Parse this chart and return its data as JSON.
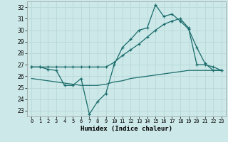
{
  "xlabel": "Humidex (Indice chaleur)",
  "background_color": "#cce8e8",
  "grid_color": "#b8d8d8",
  "line_color": "#1a6b6b",
  "x_values": [
    0,
    1,
    2,
    3,
    4,
    5,
    6,
    7,
    8,
    9,
    10,
    11,
    12,
    13,
    14,
    15,
    16,
    17,
    18,
    19,
    20,
    21,
    22,
    23
  ],
  "line1": [
    26.8,
    26.8,
    26.6,
    26.5,
    25.2,
    25.2,
    25.8,
    22.7,
    23.8,
    24.5,
    27.0,
    28.5,
    29.2,
    30.0,
    30.2,
    32.2,
    31.2,
    31.4,
    30.8,
    30.1,
    28.5,
    27.1,
    26.5,
    26.5
  ],
  "line2": [
    26.8,
    26.8,
    26.8,
    26.8,
    26.8,
    26.8,
    26.8,
    26.8,
    26.8,
    26.8,
    27.2,
    27.8,
    28.3,
    28.8,
    29.4,
    30.0,
    30.5,
    30.8,
    31.0,
    30.2,
    27.0,
    27.0,
    26.8,
    26.5
  ],
  "line3": [
    25.8,
    25.7,
    25.6,
    25.5,
    25.4,
    25.3,
    25.2,
    25.2,
    25.2,
    25.3,
    25.5,
    25.6,
    25.8,
    25.9,
    26.0,
    26.1,
    26.2,
    26.3,
    26.4,
    26.5,
    26.5,
    26.5,
    26.5,
    26.5
  ],
  "ylim": [
    22.5,
    32.5
  ],
  "yticks": [
    23,
    24,
    25,
    26,
    27,
    28,
    29,
    30,
    31,
    32
  ],
  "xticks": [
    0,
    1,
    2,
    3,
    4,
    5,
    6,
    7,
    8,
    9,
    10,
    11,
    12,
    13,
    14,
    15,
    16,
    17,
    18,
    19,
    20,
    21,
    22,
    23
  ],
  "tick_fontsize": 5.5,
  "xlabel_fontsize": 6.5
}
